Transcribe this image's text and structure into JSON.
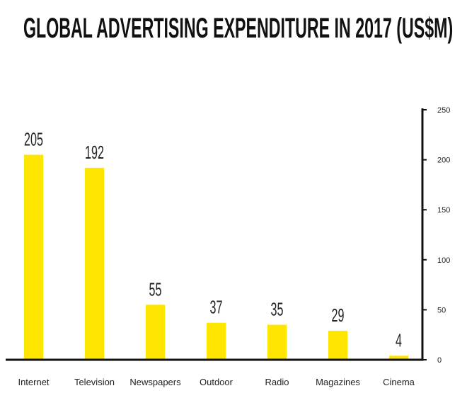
{
  "chart_data": {
    "type": "bar",
    "title": "GLOBAL ADVERTISING EXPENDITURE IN 2017 (US$M)",
    "xlabel": "",
    "ylabel": "",
    "categories": [
      "Internet",
      "Television",
      "Newspapers",
      "Outdoor",
      "Radio",
      "Magazines",
      "Cinema"
    ],
    "values": [
      205,
      192,
      55,
      37,
      35,
      29,
      4
    ],
    "data_labels": [
      "205",
      "192",
      "55",
      "37",
      "35",
      "29",
      "4"
    ],
    "yticks": [
      0,
      50,
      100,
      150,
      200,
      250
    ],
    "ytick_labels": [
      "0",
      "50",
      "100",
      "150",
      "200",
      "250"
    ],
    "ylim": [
      0,
      250
    ],
    "y_axis_side": "right",
    "grid": false,
    "legend": "none",
    "colors": {
      "bar": "#FFE600",
      "axis": "#111111"
    }
  }
}
